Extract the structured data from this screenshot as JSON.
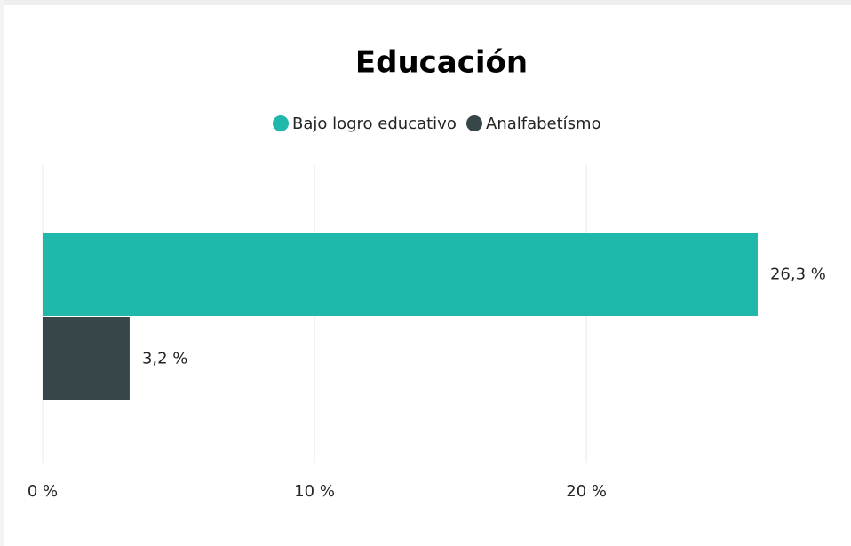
{
  "chart_data": {
    "type": "hbar",
    "title": "Educación",
    "categories": [
      null
    ],
    "series": [
      {
        "name": "Bajo logro educativo",
        "color": "#1fb8aa",
        "values": [
          26.3
        ],
        "value_labels": [
          "26,3 %"
        ]
      },
      {
        "name": "Analfabetísmo",
        "color": "#374649",
        "values": [
          3.2
        ],
        "value_labels": [
          "3,2 %"
        ]
      }
    ],
    "xlim": [
      0,
      28
    ],
    "xticks": [
      {
        "value": 0,
        "label": "0 %"
      },
      {
        "value": 10,
        "label": "10 %"
      },
      {
        "value": 20,
        "label": "20 %"
      }
    ],
    "grid": true,
    "legend": "top"
  }
}
